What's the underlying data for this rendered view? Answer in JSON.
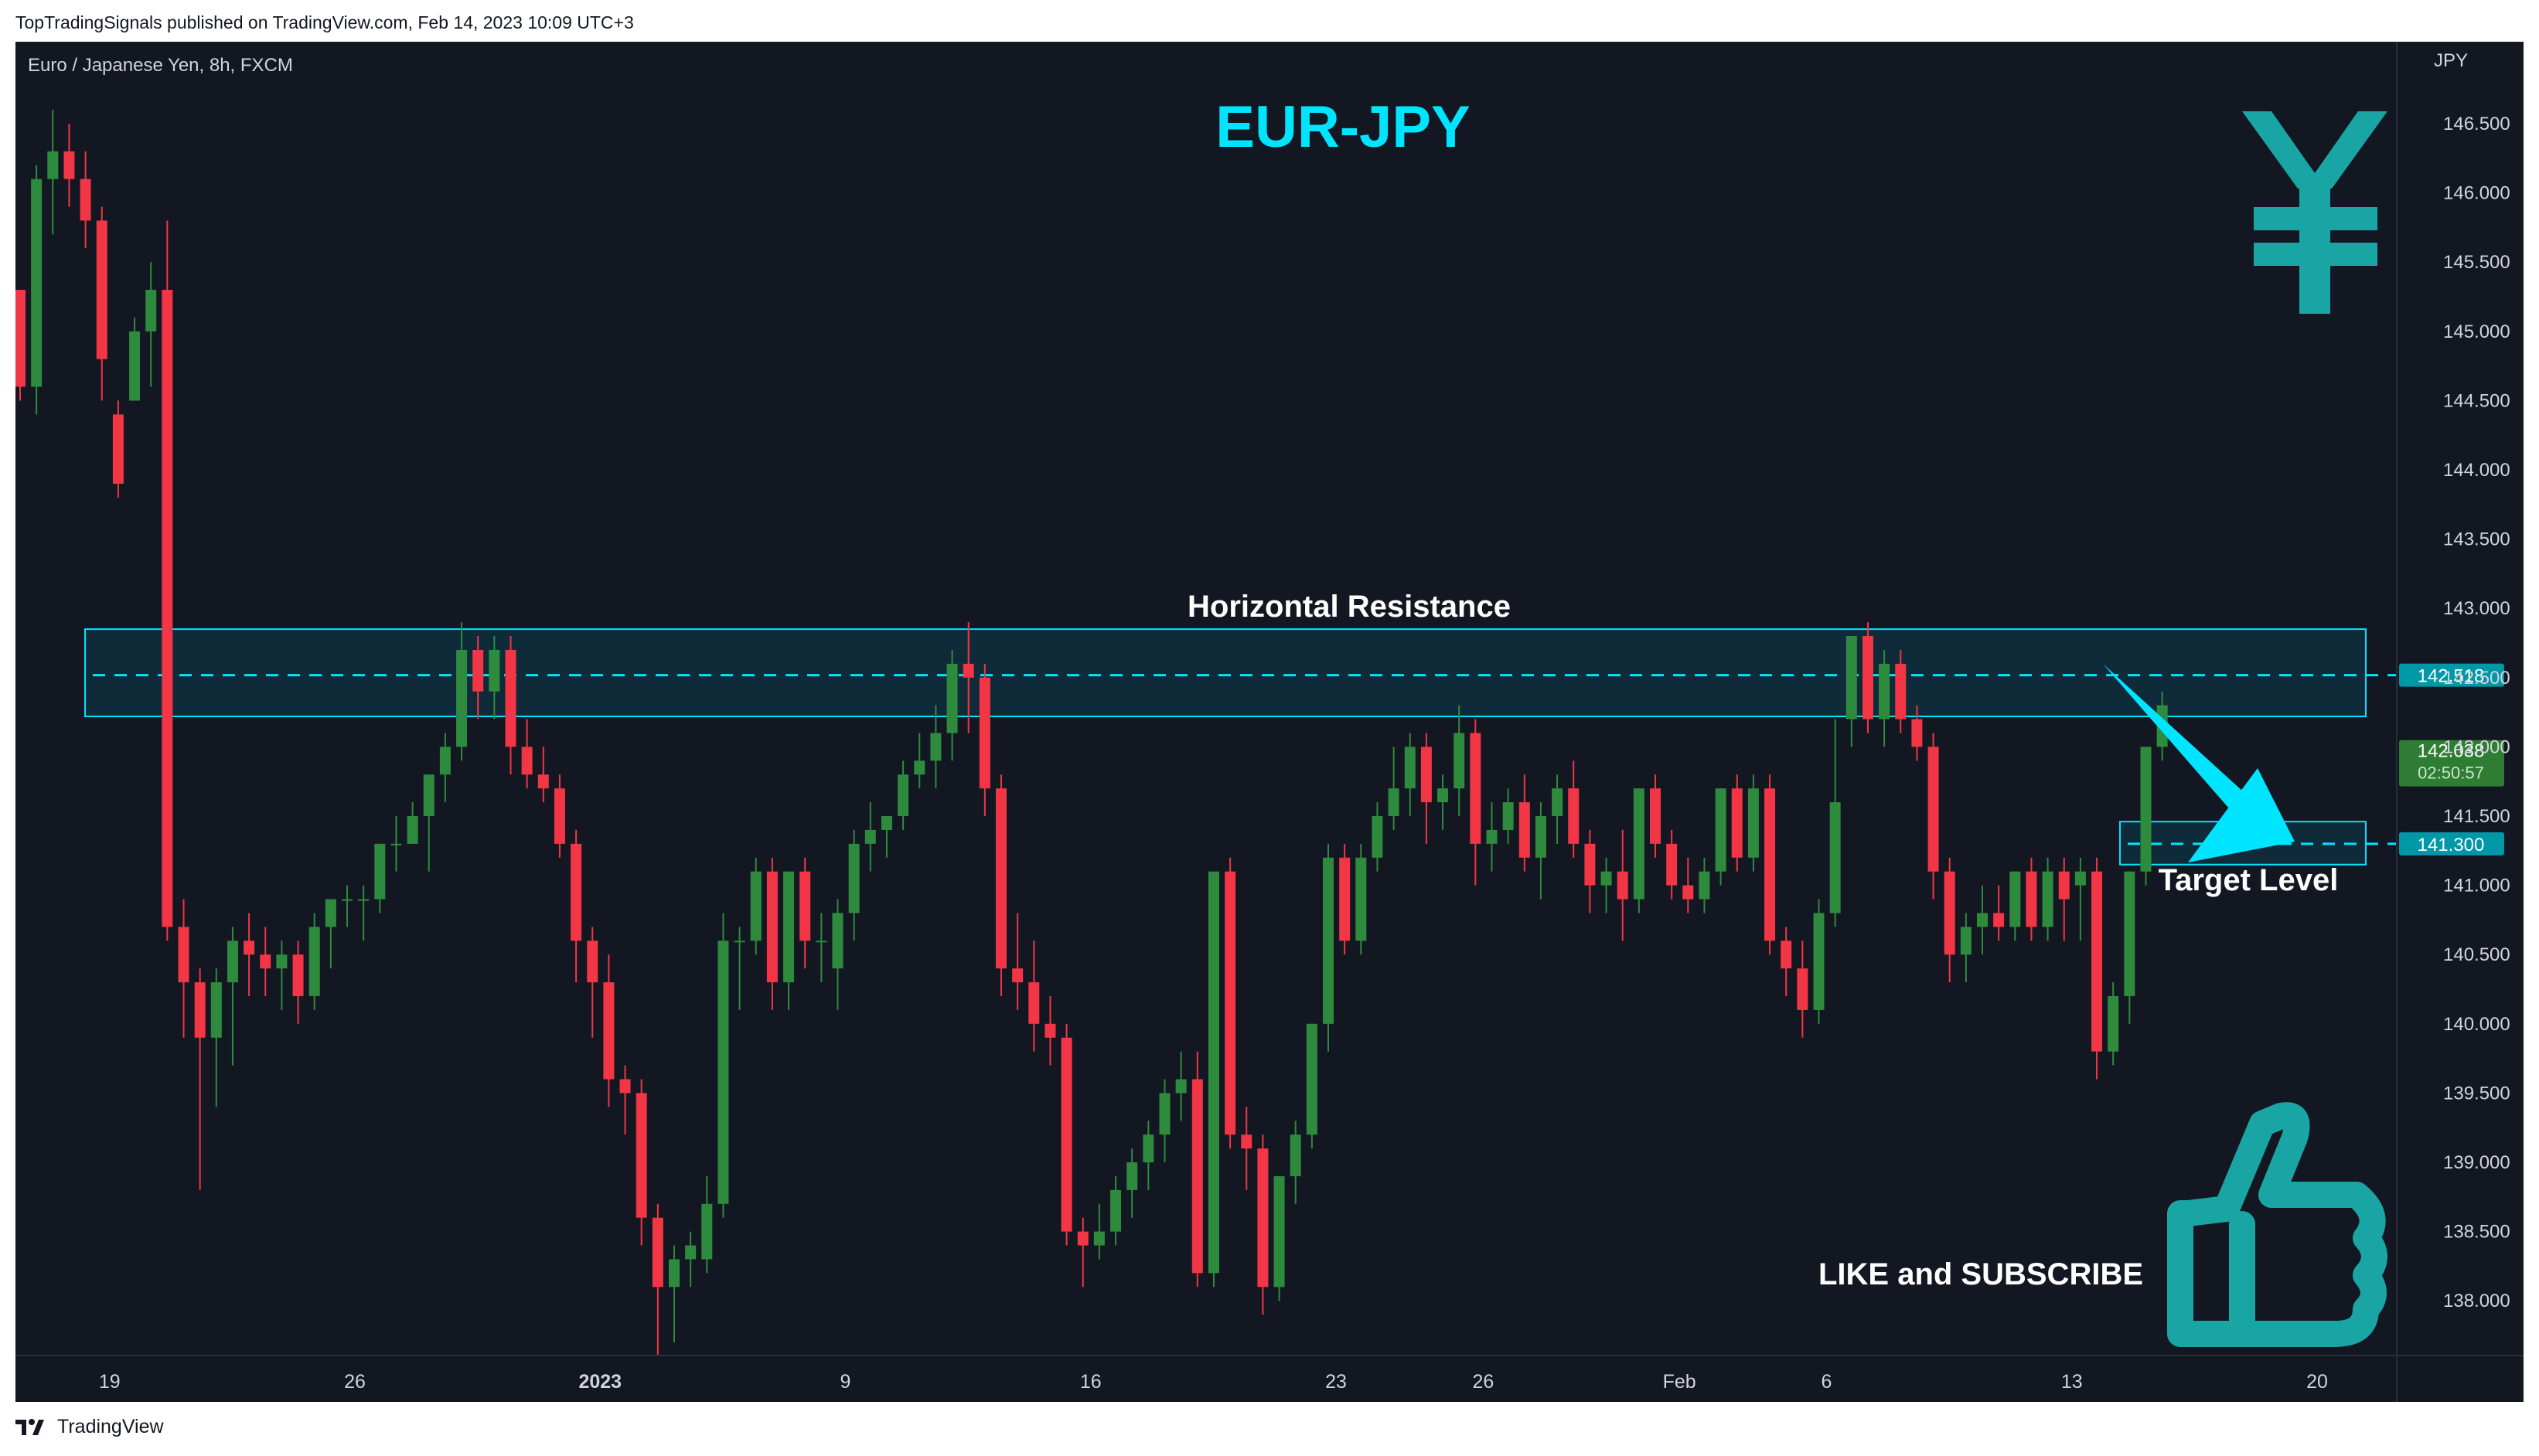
{
  "header": {
    "published": "TopTradingSignals published on TradingView.com, Feb 14, 2023 10:09 UTC+3"
  },
  "footer": {
    "brand": "TradingView",
    "logo_icon": "tradingview-logo-icon"
  },
  "chart_data": {
    "type": "candlestick",
    "symbol_info": "Euro / Japanese Yen, 8h, FXCM",
    "title": "EUR-JPY",
    "currency": "JPY",
    "ylim": [
      137.6,
      146.9
    ],
    "y_ticks": [
      "146.500",
      "146.000",
      "145.500",
      "145.000",
      "144.500",
      "144.000",
      "143.500",
      "143.000",
      "142.500",
      "142.000",
      "141.500",
      "141.000",
      "140.500",
      "140.000",
      "139.500",
      "139.000",
      "138.500",
      "138.000"
    ],
    "x_ticks": [
      {
        "label": "19",
        "bar": 5,
        "bold": false
      },
      {
        "label": "26",
        "bar": 20,
        "bold": false
      },
      {
        "label": "2023",
        "bar": 35,
        "bold": true
      },
      {
        "label": "9",
        "bar": 50,
        "bold": false
      },
      {
        "label": "16",
        "bar": 65,
        "bold": false
      },
      {
        "label": "23",
        "bar": 80,
        "bold": false
      },
      {
        "label": "26",
        "bar": 89,
        "bold": false
      },
      {
        "label": "Feb",
        "bar": 101,
        "bold": false
      },
      {
        "label": "6",
        "bar": 110,
        "bold": false
      },
      {
        "label": "13",
        "bar": 125,
        "bold": false
      },
      {
        "label": "20",
        "bar": 140,
        "bold": false
      }
    ],
    "candles": [
      [
        145.3,
        145.3,
        144.5,
        144.6
      ],
      [
        144.6,
        146.2,
        144.4,
        146.1
      ],
      [
        146.1,
        146.6,
        145.7,
        146.3
      ],
      [
        146.3,
        146.5,
        145.9,
        146.1
      ],
      [
        146.1,
        146.3,
        145.6,
        145.8
      ],
      [
        145.8,
        145.9,
        144.5,
        144.8
      ],
      [
        144.4,
        144.5,
        143.8,
        143.9
      ],
      [
        144.5,
        145.1,
        144.5,
        145.0
      ],
      [
        145.0,
        145.5,
        144.6,
        145.3
      ],
      [
        145.3,
        145.8,
        140.6,
        140.7
      ],
      [
        140.7,
        140.9,
        139.9,
        140.3
      ],
      [
        140.3,
        140.4,
        138.8,
        139.9
      ],
      [
        139.9,
        140.4,
        139.4,
        140.3
      ],
      [
        140.3,
        140.7,
        139.7,
        140.6
      ],
      [
        140.6,
        140.8,
        140.2,
        140.5
      ],
      [
        140.5,
        140.7,
        140.2,
        140.4
      ],
      [
        140.4,
        140.6,
        140.1,
        140.5
      ],
      [
        140.5,
        140.6,
        140.0,
        140.2
      ],
      [
        140.2,
        140.8,
        140.1,
        140.7
      ],
      [
        140.7,
        140.9,
        140.4,
        140.9
      ],
      [
        140.9,
        141.0,
        140.7,
        140.9
      ],
      [
        140.9,
        141.0,
        140.6,
        140.9
      ],
      [
        140.9,
        141.3,
        140.8,
        141.3
      ],
      [
        141.3,
        141.5,
        141.1,
        141.3
      ],
      [
        141.3,
        141.6,
        141.3,
        141.5
      ],
      [
        141.5,
        141.8,
        141.1,
        141.8
      ],
      [
        141.8,
        142.1,
        141.6,
        142.0
      ],
      [
        142.0,
        142.9,
        141.9,
        142.7
      ],
      [
        142.7,
        142.8,
        142.2,
        142.4
      ],
      [
        142.4,
        142.8,
        142.2,
        142.7
      ],
      [
        142.7,
        142.8,
        141.8,
        142.0
      ],
      [
        142.0,
        142.2,
        141.7,
        141.8
      ],
      [
        141.8,
        142.0,
        141.6,
        141.7
      ],
      [
        141.7,
        141.8,
        141.2,
        141.3
      ],
      [
        141.3,
        141.4,
        140.3,
        140.6
      ],
      [
        140.6,
        140.7,
        139.9,
        140.3
      ],
      [
        140.3,
        140.5,
        139.4,
        139.6
      ],
      [
        139.6,
        139.7,
        139.2,
        139.5
      ],
      [
        139.5,
        139.6,
        138.4,
        138.6
      ],
      [
        138.6,
        138.7,
        137.6,
        138.1
      ],
      [
        138.1,
        138.4,
        137.7,
        138.3
      ],
      [
        138.3,
        138.5,
        138.1,
        138.4
      ],
      [
        138.3,
        138.9,
        138.2,
        138.7
      ],
      [
        138.7,
        140.8,
        138.6,
        140.6
      ],
      [
        140.6,
        140.7,
        140.1,
        140.6
      ],
      [
        140.6,
        141.2,
        140.5,
        141.1
      ],
      [
        141.1,
        141.2,
        140.1,
        140.3
      ],
      [
        140.3,
        141.1,
        140.1,
        141.1
      ],
      [
        141.1,
        141.2,
        140.4,
        140.6
      ],
      [
        140.6,
        140.8,
        140.3,
        140.6
      ],
      [
        140.4,
        140.9,
        140.1,
        140.8
      ],
      [
        140.8,
        141.4,
        140.6,
        141.3
      ],
      [
        141.3,
        141.6,
        141.1,
        141.4
      ],
      [
        141.4,
        141.5,
        141.2,
        141.5
      ],
      [
        141.5,
        141.9,
        141.4,
        141.8
      ],
      [
        141.8,
        142.1,
        141.7,
        141.9
      ],
      [
        141.9,
        142.3,
        141.7,
        142.1
      ],
      [
        142.1,
        142.7,
        141.9,
        142.6
      ],
      [
        142.6,
        142.9,
        142.1,
        142.5
      ],
      [
        142.5,
        142.6,
        141.5,
        141.7
      ],
      [
        141.7,
        141.8,
        140.2,
        140.4
      ],
      [
        140.4,
        140.8,
        140.1,
        140.3
      ],
      [
        140.3,
        140.6,
        139.8,
        140.0
      ],
      [
        140.0,
        140.2,
        139.7,
        139.9
      ],
      [
        139.9,
        140.0,
        138.4,
        138.5
      ],
      [
        138.5,
        138.6,
        138.1,
        138.4
      ],
      [
        138.4,
        138.7,
        138.3,
        138.5
      ],
      [
        138.5,
        138.9,
        138.4,
        138.8
      ],
      [
        138.8,
        139.1,
        138.6,
        139.0
      ],
      [
        139.0,
        139.3,
        138.8,
        139.2
      ],
      [
        139.2,
        139.6,
        139.0,
        139.5
      ],
      [
        139.5,
        139.8,
        139.3,
        139.6
      ],
      [
        139.6,
        139.8,
        138.1,
        138.2
      ],
      [
        138.2,
        141.1,
        138.1,
        141.1
      ],
      [
        141.1,
        141.2,
        139.1,
        139.2
      ],
      [
        139.2,
        139.4,
        138.8,
        139.1
      ],
      [
        139.1,
        139.2,
        137.9,
        138.1
      ],
      [
        138.1,
        138.9,
        138.0,
        138.9
      ],
      [
        138.9,
        139.3,
        138.7,
        139.2
      ],
      [
        139.2,
        140.0,
        139.1,
        140.0
      ],
      [
        140.0,
        141.3,
        139.8,
        141.2
      ],
      [
        141.2,
        141.3,
        140.5,
        140.6
      ],
      [
        140.6,
        141.3,
        140.5,
        141.2
      ],
      [
        141.2,
        141.6,
        141.1,
        141.5
      ],
      [
        141.5,
        142.0,
        141.4,
        141.7
      ],
      [
        141.7,
        142.1,
        141.5,
        142.0
      ],
      [
        142.0,
        142.1,
        141.3,
        141.6
      ],
      [
        141.6,
        141.8,
        141.4,
        141.7
      ],
      [
        141.7,
        142.3,
        141.5,
        142.1
      ],
      [
        142.1,
        142.2,
        141.0,
        141.3
      ],
      [
        141.3,
        141.6,
        141.1,
        141.4
      ],
      [
        141.4,
        141.7,
        141.3,
        141.6
      ],
      [
        141.6,
        141.8,
        141.1,
        141.2
      ],
      [
        141.2,
        141.6,
        140.9,
        141.5
      ],
      [
        141.5,
        141.8,
        141.3,
        141.7
      ],
      [
        141.7,
        141.9,
        141.2,
        141.3
      ],
      [
        141.3,
        141.4,
        140.8,
        141.0
      ],
      [
        141.0,
        141.2,
        140.8,
        141.1
      ],
      [
        141.1,
        141.4,
        140.6,
        140.9
      ],
      [
        140.9,
        141.7,
        140.8,
        141.7
      ],
      [
        141.7,
        141.8,
        141.2,
        141.3
      ],
      [
        141.3,
        141.4,
        140.9,
        141.0
      ],
      [
        141.0,
        141.2,
        140.8,
        140.9
      ],
      [
        140.9,
        141.2,
        140.8,
        141.1
      ],
      [
        141.1,
        141.7,
        141.0,
        141.7
      ],
      [
        141.7,
        141.8,
        141.1,
        141.2
      ],
      [
        141.2,
        141.8,
        141.1,
        141.7
      ],
      [
        141.7,
        141.8,
        140.5,
        140.6
      ],
      [
        140.6,
        140.7,
        140.2,
        140.4
      ],
      [
        140.4,
        140.6,
        139.9,
        140.1
      ],
      [
        140.1,
        140.9,
        140.0,
        140.8
      ],
      [
        140.8,
        142.2,
        140.7,
        141.6
      ],
      [
        142.2,
        142.8,
        142.0,
        142.8
      ],
      [
        142.8,
        142.9,
        142.1,
        142.2
      ],
      [
        142.2,
        142.7,
        142.0,
        142.6
      ],
      [
        142.6,
        142.7,
        142.1,
        142.2
      ],
      [
        142.2,
        142.3,
        141.9,
        142.0
      ],
      [
        142.0,
        142.1,
        140.9,
        141.1
      ],
      [
        141.1,
        141.2,
        140.3,
        140.5
      ],
      [
        140.5,
        140.8,
        140.3,
        140.7
      ],
      [
        140.7,
        141.0,
        140.5,
        140.8
      ],
      [
        140.8,
        141.0,
        140.6,
        140.7
      ],
      [
        140.7,
        141.1,
        140.6,
        141.1
      ],
      [
        141.1,
        141.2,
        140.6,
        140.7
      ],
      [
        140.7,
        141.2,
        140.6,
        141.1
      ],
      [
        141.1,
        141.2,
        140.6,
        140.9
      ],
      [
        141.0,
        141.2,
        140.6,
        141.1
      ],
      [
        141.1,
        141.2,
        139.6,
        139.8
      ],
      [
        139.8,
        140.3,
        139.7,
        140.2
      ],
      [
        140.2,
        141.1,
        140.0,
        141.1
      ],
      [
        141.1,
        142.0,
        141.0,
        142.0
      ],
      [
        142.0,
        142.4,
        141.9,
        142.3
      ]
    ],
    "zones": [
      {
        "name": "Horizontal Resistance",
        "top": 142.85,
        "bottom": 142.22,
        "dashed_level": 142.518,
        "price_label": "142.518"
      },
      {
        "name": "Target Level",
        "top": 141.46,
        "bottom": 141.15,
        "dashed_level": 141.3,
        "price_label": "141.300"
      }
    ],
    "last_price": {
      "value": "142.038",
      "timer": "02:50:57",
      "level": 142.038
    },
    "annotations": {
      "like_subscribe": "LIKE and SUBSCRIBE"
    },
    "icons": [
      "yen-icon",
      "thumbs-up-icon",
      "arrow-icon"
    ],
    "colors": {
      "background": "#131722",
      "up": "#26a69a",
      "up_body": "#2e8b3e",
      "down": "#f23645",
      "accent": "#00e5ff",
      "yen": "#1aa5a5",
      "axis_text": "#d1d4dc",
      "price_label_bg": "#0097a7",
      "last_price_bg": "#2e7d32"
    }
  }
}
